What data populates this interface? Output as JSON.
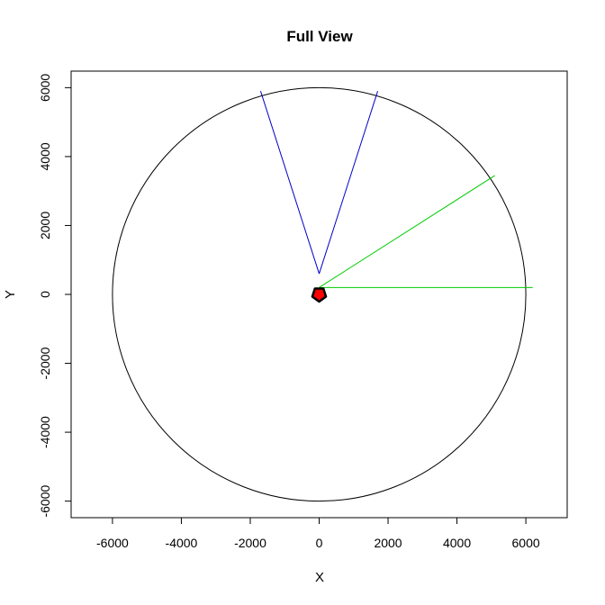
{
  "chart_data": {
    "type": "scatter",
    "title": "Full View",
    "xlabel": "X",
    "ylabel": "Y",
    "xlim": [
      -7200,
      7200
    ],
    "ylim": [
      -6480,
      6480
    ],
    "x_ticks": [
      -6000,
      -4000,
      -2000,
      0,
      2000,
      4000,
      6000
    ],
    "y_ticks": [
      -6000,
      -4000,
      -2000,
      0,
      2000,
      4000,
      6000
    ],
    "x_tick_labels": [
      "-6000",
      "-4000",
      "-2000",
      "0",
      "2000",
      "4000",
      "6000"
    ],
    "y_tick_labels": [
      "-6000",
      "-4000",
      "-2000",
      "0",
      "2000",
      "4000",
      "6000"
    ],
    "grid": false,
    "circle": {
      "center": [
        0,
        0
      ],
      "radius": 6000,
      "color": "#000000"
    },
    "blue_lines": {
      "color": "#0000cc",
      "segments": [
        {
          "from": [
            0,
            600
          ],
          "to": [
            -1700,
            5900
          ]
        },
        {
          "from": [
            0,
            600
          ],
          "to": [
            1700,
            5900
          ]
        }
      ]
    },
    "green_lines": {
      "color": "#00cc00",
      "segments": [
        {
          "from": [
            0,
            200
          ],
          "to": [
            5100,
            3450
          ]
        },
        {
          "from": [
            0,
            200
          ],
          "to": [
            6200,
            200
          ]
        }
      ]
    },
    "marker": {
      "shape": "pentagon",
      "center": [
        0,
        0
      ],
      "fill": "#ff0000",
      "stroke": "#000000"
    }
  }
}
